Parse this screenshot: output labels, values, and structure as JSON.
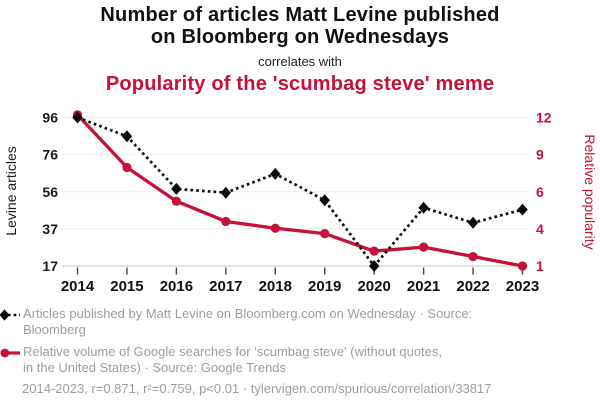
{
  "chart_data": {
    "type": "line",
    "title": "Number of articles Matt Levine published on Bloomberg on Wednesdays",
    "title_lines": [
      "Number of articles Matt Levine published",
      "on Bloomberg on Wednesdays"
    ],
    "connector": "correlates with",
    "subtitle": "Popularity of the 'scumbag steve' meme",
    "x": [
      2014,
      2015,
      2016,
      2017,
      2018,
      2019,
      2020,
      2021,
      2022,
      2023
    ],
    "series": [
      {
        "name": "Articles published by Matt Levine on Bloomberg.com on Wednesday",
        "source": "Bloomberg",
        "axis": "left",
        "color": "#0a0a0a",
        "marker": "diamond",
        "line_style": "dashed",
        "values": [
          96,
          86,
          58,
          56,
          66,
          52,
          17,
          48,
          40,
          47
        ]
      },
      {
        "name": "Relative volume of Google searches for 'scumbag steve' (without quotes, in the United States)",
        "source": "Google Trends",
        "axis": "right",
        "color": "#c41238",
        "marker": "circle",
        "line_style": "solid",
        "values": [
          12.2,
          8.3,
          5.8,
          4.3,
          3.8,
          3.4,
          2.1,
          2.4,
          1.7,
          1.0
        ]
      }
    ],
    "left_axis": {
      "label": "Levine articles",
      "ticks": [
        96,
        76,
        56,
        37,
        17
      ],
      "range": [
        17,
        96
      ]
    },
    "right_axis": {
      "label": "Relative popularity",
      "ticks": [
        12,
        9,
        6,
        4,
        1
      ],
      "range": [
        1,
        12
      ]
    },
    "grid": "horizontal",
    "legend_position": "bottom"
  },
  "legend": {
    "items": [
      {
        "line1": "Articles published by Matt Levine on Bloomberg.com on Wednesday · Source:",
        "line2": "Bloomberg"
      },
      {
        "line1": "Relative volume of Google searches for 'scumbag steve' (without quotes,",
        "line2": "in the United States) · Source: Google Trends"
      }
    ]
  },
  "footer": {
    "text": "2014-2023, r=0.871, r²=0.759, p<0.01 · tylervigen.com/spurious/correlation/33817"
  },
  "colors": {
    "accent_red": "#c41238",
    "series_black": "#0a0a0a",
    "legend_gray": "#9d9d9d",
    "gridline": "#ededed",
    "axis_line": "#c9c9c9",
    "tick_mark": "#444444"
  }
}
